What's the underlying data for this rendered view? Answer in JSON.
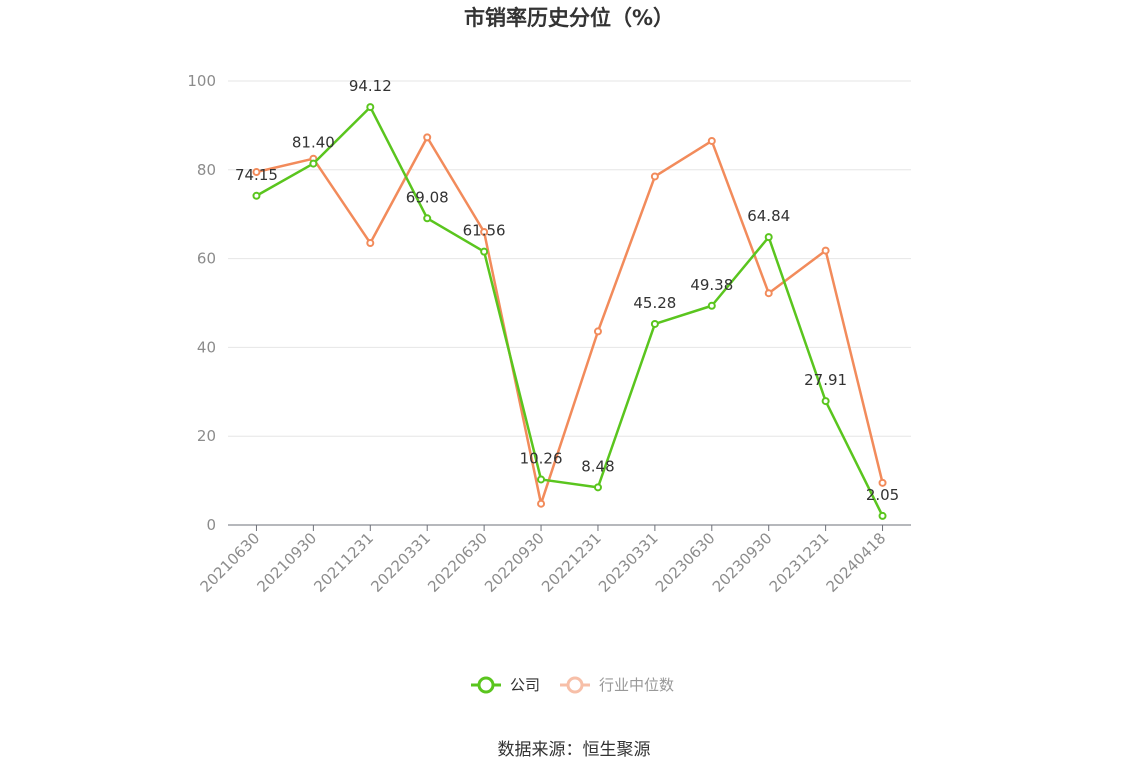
{
  "chart_data": {
    "type": "line",
    "title": "市销率历史分位（%）",
    "categories": [
      "20210630",
      "20210930",
      "20211231",
      "20220331",
      "20220630",
      "20220930",
      "20221231",
      "20230331",
      "20230630",
      "20230930",
      "20231231",
      "20240418"
    ],
    "series": [
      {
        "name": "公司",
        "color": "#5ac51e",
        "values": [
          74.15,
          81.4,
          94.12,
          69.08,
          61.56,
          10.26,
          8.48,
          45.28,
          49.38,
          64.84,
          27.91,
          2.05
        ],
        "labels": [
          "74.15",
          "81.40",
          "94.12",
          "69.08",
          "61.56",
          "10.26",
          "8.48",
          "45.28",
          "49.38",
          "64.84",
          "27.91",
          "2.05"
        ]
      },
      {
        "name": "行业中位数",
        "color": "#f28b5b",
        "values": [
          79.5,
          82.5,
          63.5,
          87.3,
          66.0,
          4.8,
          43.6,
          78.5,
          86.5,
          52.2,
          61.8,
          9.5
        ]
      }
    ],
    "ylim": [
      0,
      100
    ],
    "yticks": [
      "0",
      "20",
      "40",
      "60",
      "80",
      "100"
    ],
    "grid": true,
    "legend_position": "bottom"
  },
  "source_text": "数据来源：恒生聚源"
}
